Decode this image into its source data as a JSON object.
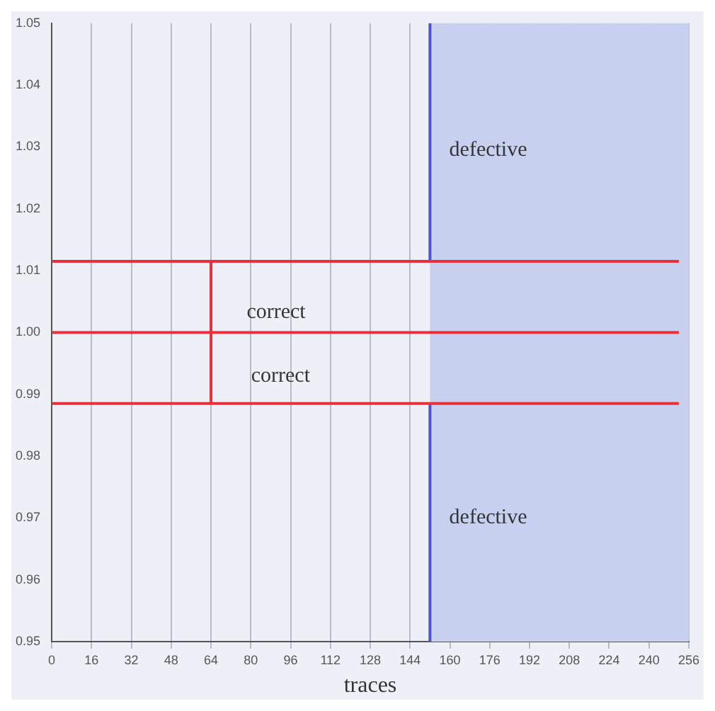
{
  "chart_data": {
    "type": "line",
    "xlabel": "traces",
    "xlim": [
      0,
      256
    ],
    "xticks": [
      0,
      16,
      32,
      48,
      64,
      80,
      96,
      112,
      128,
      144,
      160,
      176,
      192,
      208,
      224,
      240,
      256
    ],
    "ylim": [
      0.95,
      1.05
    ],
    "yticks": [
      {
        "value": 0.95,
        "label": "0.95"
      },
      {
        "value": 0.96,
        "label": "0.96"
      },
      {
        "value": 0.97,
        "label": "0.97"
      },
      {
        "value": 0.98,
        "label": "0.98"
      },
      {
        "value": 0.99,
        "label": "0.99"
      },
      {
        "value": 1.0,
        "label": "1.00"
      },
      {
        "value": 1.01,
        "label": "1.01"
      },
      {
        "value": 1.02,
        "label": "1.02"
      },
      {
        "value": 1.03,
        "label": "1.03"
      },
      {
        "value": 1.04,
        "label": "1.04"
      },
      {
        "value": 1.05,
        "label": "1.05"
      }
    ],
    "grid": "x",
    "legend": false,
    "marker": "none",
    "line_style": "solid",
    "bands": [
      {
        "axis": "x",
        "from": 152,
        "to": 256,
        "color": "#c8d0f0"
      }
    ],
    "series": [
      {
        "color": "#e8303a",
        "x": [
          0,
          252
        ],
        "values": [
          1.0115,
          1.0115
        ]
      },
      {
        "color": "#e8303a",
        "x": [
          0,
          252
        ],
        "values": [
          1.0,
          1.0
        ]
      },
      {
        "color": "#e8303a",
        "x": [
          0,
          252
        ],
        "values": [
          0.9885,
          0.9885
        ]
      },
      {
        "color": "#e8303a",
        "x": [
          64,
          64
        ],
        "values": [
          0.9885,
          1.0115
        ]
      },
      {
        "color": "#4a52d8",
        "x": [
          152,
          152
        ],
        "values": [
          1.0115,
          1.05
        ]
      },
      {
        "color": "#4a52d8",
        "x": [
          152,
          152
        ],
        "values": [
          0.95,
          0.9885
        ]
      }
    ],
    "annotations": [
      "correct",
      "correct",
      "defective",
      "defective"
    ]
  }
}
